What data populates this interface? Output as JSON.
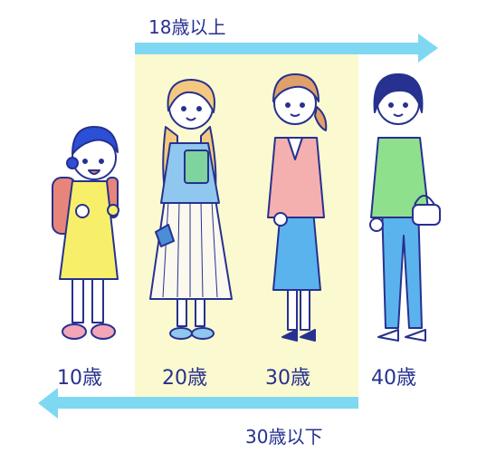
{
  "top_arrow": {
    "label": "18歳以上",
    "color": "#7fd8f2"
  },
  "bottom_arrow": {
    "label": "30歳以下",
    "color": "#7fd8f2"
  },
  "highlight_band": {
    "color": "#fbf9cf"
  },
  "ages": [
    {
      "label": "10歳"
    },
    {
      "label": "20歳"
    },
    {
      "label": "30歳"
    },
    {
      "label": "40歳"
    }
  ],
  "figures": [
    {
      "name": "child",
      "icon": "girl-with-backpack-icon"
    },
    {
      "name": "young-woman",
      "icon": "woman-with-book-icon"
    },
    {
      "name": "woman-30s",
      "icon": "woman-pink-cardigan-icon"
    },
    {
      "name": "woman-40s",
      "icon": "woman-green-cardigan-icon"
    }
  ],
  "colors": {
    "ink": "#27318f",
    "arrow": "#7fd8f2",
    "band": "#fbf9cf"
  }
}
